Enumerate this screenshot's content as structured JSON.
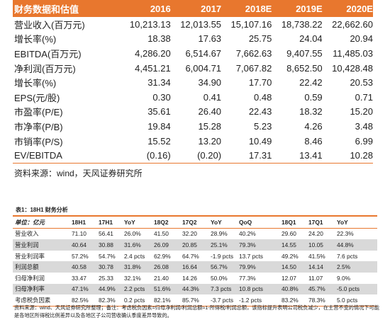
{
  "top_table": {
    "header": [
      "财务数据和估值",
      "2016",
      "2017",
      "2018E",
      "2019E",
      "2020E"
    ],
    "rows": [
      [
        "营业收入(百万元)",
        "10,213.13",
        "12,013.55",
        "15,107.16",
        "18,738.22",
        "22,662.60"
      ],
      [
        "增长率(%)",
        "18.38",
        "17.63",
        "25.75",
        "24.04",
        "20.94"
      ],
      [
        "EBITDA(百万元)",
        "4,286.20",
        "6,514.67",
        "7,662.63",
        "9,407.55",
        "11,485.03"
      ],
      [
        "净利润(百万元)",
        "4,451.21",
        "6,004.71",
        "7,067.82",
        "8,652.50",
        "10,428.48"
      ],
      [
        "增长率(%)",
        "31.34",
        "34.90",
        "17.70",
        "22.42",
        "20.53"
      ],
      [
        "EPS(元/股)",
        "0.30",
        "0.41",
        "0.48",
        "0.59",
        "0.71"
      ],
      [
        "市盈率(P/E)",
        "35.61",
        "26.40",
        "22.43",
        "18.32",
        "15.20"
      ],
      [
        "市净率(P/B)",
        "19.84",
        "15.28",
        "5.23",
        "4.26",
        "3.48"
      ],
      [
        "市销率(P/S)",
        "15.52",
        "13.20",
        "10.49",
        "8.46",
        "6.99"
      ],
      [
        "EV/EBITDA",
        "(0.16)",
        "(0.20)",
        "17.31",
        "13.41",
        "10.28"
      ]
    ],
    "source": "资料来源：wind，天风证券研究所"
  },
  "bottom_table": {
    "caption": "表1：18H1 财务分析",
    "header": [
      "单位：亿元",
      "18H1",
      "17H1",
      "YoY",
      "18Q2",
      "17Q2",
      "YoY",
      "QoQ",
      "18Q1",
      "17Q1",
      "YoY"
    ],
    "rows": [
      [
        "营业收入",
        "71.10",
        "56.41",
        "26.0%",
        "41.50",
        "32.20",
        "28.9%",
        "40.2%",
        "29.60",
        "24.20",
        "22.3%"
      ],
      [
        "营业利润",
        "40.64",
        "30.88",
        "31.6%",
        "26.09",
        "20.85",
        "25.1%",
        "79.3%",
        "14.55",
        "10.05",
        "44.8%"
      ],
      [
        "营业利润率",
        "57.2%",
        "54.7%",
        "2.4 pcts",
        "62.9%",
        "64.7%",
        "-1.9 pcts",
        "13.7 pcts",
        "49.2%",
        "41.5%",
        "7.6 pcts"
      ],
      [
        "利润总额",
        "40.58",
        "30.78",
        "31.8%",
        "26.08",
        "16.64",
        "56.7%",
        "79.9%",
        "14.50",
        "14.14",
        "2.5%"
      ],
      [
        "归母净利润",
        "33.47",
        "25.33",
        "32.1%",
        "21.40",
        "14.26",
        "50.0%",
        "77.3%",
        "12.07",
        "11.07",
        "9.0%"
      ],
      [
        "归母净利率",
        "47.1%",
        "44.9%",
        "2.2 pcts",
        "51.6%",
        "44.3%",
        "7.3 pcts",
        "10.8 pcts",
        "40.8%",
        "45.7%",
        "-5.0 pcts"
      ],
      [
        "考虑税负因素",
        "82.5%",
        "82.3%",
        "0.2 pcts",
        "82.1%",
        "85.7%",
        "-3.7 pcts",
        "-1.2 pcts",
        "83.2%",
        "78.3%",
        "5.0 pcts"
      ]
    ],
    "note": "资料来源：wind、天风证券研究所整理；备注：考虑税负因素=归母净利润/利润总额≈1-所得税/利润总额，该指标提升表明公司税负减少，在主营不变的情况下可能是各地区所得税比例差异以及各地区子公司营收确认季度差异导致的。"
  },
  "colors": {
    "accent": "#e8772e",
    "shade": "#d9d9d9"
  }
}
